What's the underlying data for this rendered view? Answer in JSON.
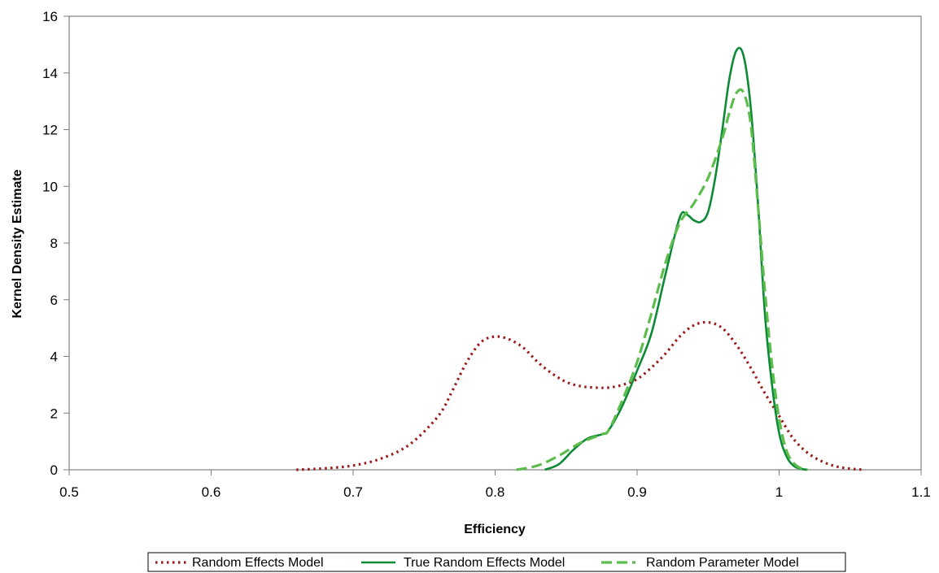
{
  "chart_data": {
    "type": "line",
    "title": "",
    "xlabel": "Efficiency",
    "ylabel": "Kernel Density Estimate",
    "xlim": [
      0.5,
      1.1
    ],
    "ylim": [
      0,
      16
    ],
    "xticks": [
      "0.5",
      "0.6",
      "0.7",
      "0.8",
      "0.9",
      "1",
      "1.1"
    ],
    "yticks": [
      "0",
      "2",
      "4",
      "6",
      "8",
      "10",
      "12",
      "14",
      "16"
    ],
    "grid": false,
    "legend_position": "bottom",
    "series": [
      {
        "name": "Random Effects Model",
        "color": "#9b1b1b",
        "style": "dotted",
        "x": [
          0.66,
          0.68,
          0.7,
          0.72,
          0.74,
          0.76,
          0.77,
          0.78,
          0.79,
          0.8,
          0.81,
          0.82,
          0.83,
          0.84,
          0.85,
          0.86,
          0.87,
          0.88,
          0.89,
          0.9,
          0.91,
          0.92,
          0.93,
          0.94,
          0.95,
          0.96,
          0.97,
          0.98,
          0.99,
          1.0,
          1.01,
          1.02,
          1.03,
          1.04,
          1.05,
          1.06
        ],
        "y": [
          0.0,
          0.05,
          0.15,
          0.4,
          0.9,
          1.9,
          2.8,
          3.8,
          4.5,
          4.7,
          4.6,
          4.3,
          3.8,
          3.4,
          3.1,
          2.95,
          2.9,
          2.9,
          3.0,
          3.2,
          3.6,
          4.1,
          4.7,
          5.1,
          5.2,
          5.0,
          4.4,
          3.6,
          2.7,
          1.9,
          1.1,
          0.6,
          0.3,
          0.12,
          0.04,
          0.0
        ]
      },
      {
        "name": "True Random Effects Model",
        "color": "#0d8a36",
        "style": "solid",
        "x": [
          0.835,
          0.845,
          0.855,
          0.865,
          0.875,
          0.88,
          0.89,
          0.9,
          0.91,
          0.92,
          0.93,
          0.935,
          0.94,
          0.945,
          0.95,
          0.955,
          0.96,
          0.965,
          0.97,
          0.975,
          0.98,
          0.985,
          0.99,
          0.995,
          1.0,
          1.005,
          1.01,
          1.015,
          1.02
        ],
        "y": [
          0.0,
          0.2,
          0.7,
          1.1,
          1.25,
          1.4,
          2.3,
          3.5,
          4.8,
          6.9,
          8.9,
          9.0,
          8.8,
          8.75,
          9.1,
          10.3,
          12.0,
          13.8,
          14.8,
          14.6,
          12.8,
          9.5,
          5.5,
          3.0,
          1.3,
          0.5,
          0.15,
          0.04,
          0.0
        ]
      },
      {
        "name": "Random Parameter Model",
        "color": "#5cbd4c",
        "style": "dashed",
        "x": [
          0.815,
          0.83,
          0.845,
          0.86,
          0.875,
          0.88,
          0.89,
          0.9,
          0.91,
          0.92,
          0.93,
          0.94,
          0.95,
          0.96,
          0.965,
          0.97,
          0.975,
          0.98,
          0.985,
          0.99,
          0.995,
          1.0,
          1.005,
          1.01,
          1.015,
          1.02
        ],
        "y": [
          0.0,
          0.15,
          0.5,
          0.95,
          1.25,
          1.4,
          2.5,
          3.8,
          5.5,
          7.3,
          8.7,
          9.4,
          10.3,
          11.7,
          12.6,
          13.3,
          13.3,
          12.2,
          9.4,
          6.3,
          3.7,
          1.8,
          0.7,
          0.25,
          0.06,
          0.0
        ]
      }
    ]
  }
}
